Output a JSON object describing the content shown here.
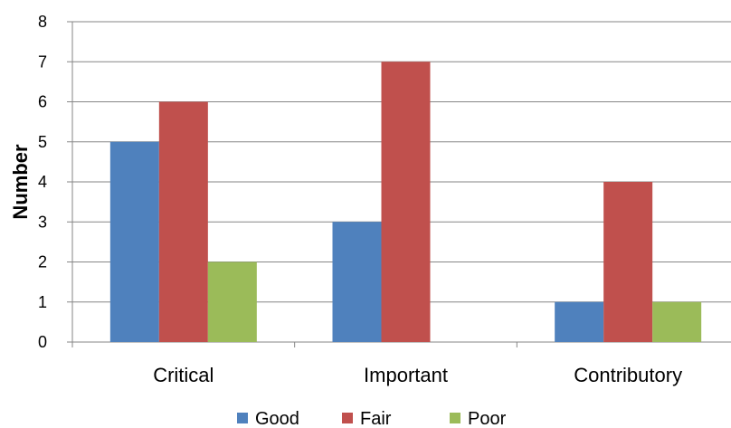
{
  "chart_data": {
    "type": "bar",
    "title": "",
    "xlabel": "",
    "ylabel": "Number",
    "ylim": [
      0,
      8
    ],
    "yticks": [
      0,
      1,
      2,
      3,
      4,
      5,
      6,
      7,
      8
    ],
    "grid": true,
    "legend_position": "bottom",
    "categories": [
      "Critical",
      "Important",
      "Contributory"
    ],
    "series": [
      {
        "name": "Good",
        "color": "#4F81BD",
        "values": [
          5,
          3,
          1
        ]
      },
      {
        "name": "Fair",
        "color": "#C0504D",
        "values": [
          6,
          7,
          4
        ]
      },
      {
        "name": "Poor",
        "color": "#9BBB59",
        "values": [
          2,
          0,
          1
        ]
      }
    ]
  }
}
